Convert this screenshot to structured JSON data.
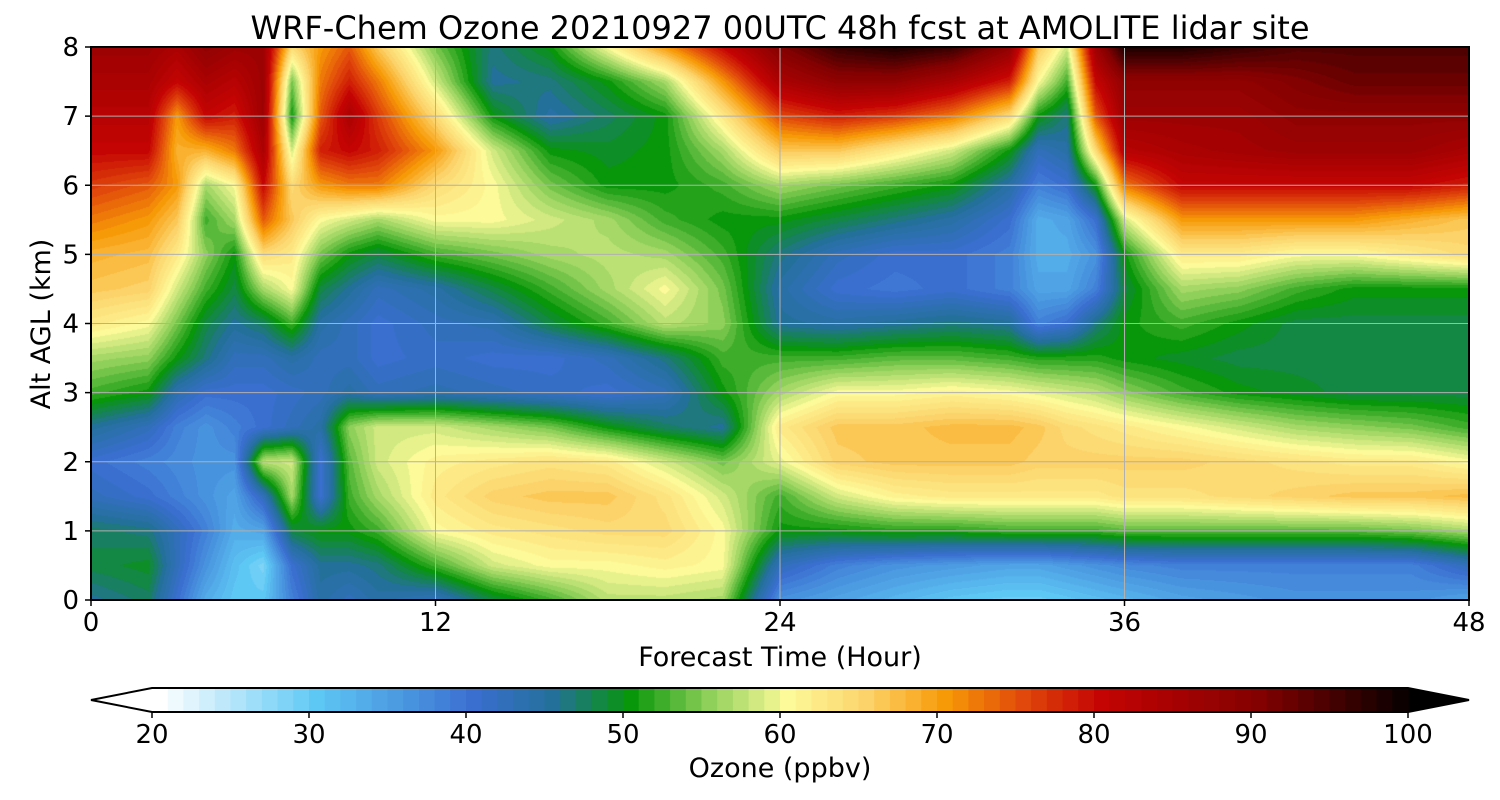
{
  "chart_data": {
    "type": "heatmap",
    "title": "WRF-Chem Ozone  20210927 00UTC 48h fcst at AMOLITE lidar site",
    "xlabel": "Forecast Time (Hour)",
    "ylabel": "Alt AGL (km)",
    "xlim": [
      0,
      48
    ],
    "ylim": [
      0,
      8
    ],
    "x_ticks": [
      0,
      12,
      24,
      36,
      48
    ],
    "y_ticks": [
      0,
      1,
      2,
      3,
      4,
      5,
      6,
      7,
      8
    ],
    "grid": true,
    "x_hours": [
      0,
      2,
      3,
      4,
      5,
      6,
      7,
      8,
      9,
      10,
      12,
      14,
      16,
      18,
      20,
      22,
      24,
      26,
      28,
      30,
      32,
      33,
      34,
      35,
      36,
      38,
      40,
      42,
      44,
      46,
      48
    ],
    "y_km": [
      0,
      0.5,
      1,
      1.5,
      2,
      2.5,
      3,
      3.5,
      4,
      4.5,
      5,
      5.5,
      6,
      6.5,
      7,
      7.5,
      8
    ],
    "ozone_ppbv": [
      [
        45,
        47,
        40,
        33,
        30,
        30,
        38,
        44,
        42,
        44,
        42,
        48,
        52,
        57,
        57,
        56,
        36,
        34,
        32,
        30,
        29,
        29,
        30,
        31,
        32,
        34,
        35,
        36,
        36,
        36,
        34
      ],
      [
        48,
        49,
        42,
        36,
        31,
        28,
        40,
        45,
        45,
        46,
        52,
        58,
        60,
        60,
        61,
        60,
        42,
        38,
        36,
        35,
        34,
        34,
        35,
        36,
        37,
        38,
        38,
        38,
        38,
        38,
        42
      ],
      [
        47,
        46,
        42,
        38,
        33,
        34,
        48,
        50,
        50,
        52,
        60,
        62,
        63,
        64,
        64,
        60,
        50,
        50,
        51,
        51,
        52,
        52,
        52,
        52,
        53,
        53,
        53,
        53,
        53,
        54,
        56
      ],
      [
        42,
        40,
        38,
        36,
        34,
        42,
        56,
        40,
        52,
        56,
        62,
        65,
        66,
        66,
        63,
        58,
        52,
        58,
        61,
        62,
        62,
        62,
        62,
        62,
        63,
        63,
        64,
        65,
        66,
        66,
        67
      ],
      [
        40,
        38,
        37,
        36,
        36,
        57,
        58,
        40,
        53,
        58,
        61,
        62,
        63,
        62,
        58,
        54,
        59,
        65,
        66,
        66,
        66,
        65,
        65,
        65,
        65,
        65,
        64,
        63,
        62,
        62,
        60
      ],
      [
        45,
        42,
        38,
        36,
        38,
        40,
        42,
        44,
        55,
        58,
        58,
        56,
        54,
        50,
        47,
        45,
        62,
        66,
        66,
        67,
        67,
        66,
        64,
        63,
        62,
        60,
        58,
        56,
        55,
        54,
        52
      ],
      [
        52,
        50,
        43,
        40,
        40,
        40,
        41,
        42,
        44,
        42,
        43,
        42,
        41,
        40,
        42,
        50,
        56,
        60,
        60,
        61,
        60,
        59,
        58,
        57,
        55,
        52,
        50,
        49,
        48,
        48,
        48
      ],
      [
        56,
        55,
        50,
        46,
        42,
        42,
        44,
        42,
        42,
        40,
        41,
        40,
        40,
        42,
        46,
        52,
        52,
        52,
        53,
        53,
        52,
        51,
        51,
        51,
        50,
        49,
        48,
        48,
        48,
        48,
        48
      ],
      [
        62,
        60,
        54,
        48,
        45,
        47,
        52,
        44,
        42,
        40,
        42,
        43,
        48,
        52,
        57,
        55,
        45,
        44,
        45,
        46,
        45,
        38,
        40,
        46,
        50,
        52,
        50,
        48,
        48,
        48,
        48
      ],
      [
        66,
        65,
        58,
        52,
        48,
        56,
        60,
        48,
        45,
        42,
        44,
        48,
        52,
        56,
        60,
        54,
        44,
        40,
        39,
        40,
        38,
        34,
        34,
        38,
        48,
        56,
        55,
        52,
        50,
        50,
        50
      ],
      [
        68,
        67,
        62,
        55,
        50,
        64,
        62,
        54,
        50,
        48,
        52,
        54,
        56,
        57,
        56,
        52,
        46,
        42,
        40,
        40,
        38,
        33,
        33,
        36,
        50,
        62,
        62,
        60,
        60,
        62,
        64
      ],
      [
        72,
        70,
        66,
        52,
        56,
        74,
        66,
        60,
        58,
        56,
        60,
        60,
        58,
        56,
        52,
        50,
        50,
        48,
        46,
        44,
        40,
        33,
        34,
        40,
        58,
        70,
        70,
        70,
        70,
        68,
        66
      ],
      [
        76,
        74,
        70,
        56,
        60,
        80,
        64,
        70,
        72,
        72,
        64,
        60,
        54,
        50,
        50,
        52,
        56,
        54,
        52,
        50,
        44,
        38,
        40,
        50,
        72,
        80,
        80,
        80,
        80,
        80,
        78
      ],
      [
        80,
        80,
        68,
        68,
        72,
        84,
        58,
        78,
        80,
        78,
        70,
        58,
        50,
        49,
        50,
        56,
        66,
        66,
        62,
        58,
        50,
        42,
        44,
        64,
        82,
        84,
        85,
        86,
        86,
        86,
        84
      ],
      [
        82,
        82,
        70,
        80,
        78,
        86,
        50,
        74,
        84,
        76,
        64,
        50,
        44,
        47,
        50,
        62,
        75,
        78,
        76,
        72,
        64,
        50,
        46,
        74,
        86,
        86,
        86,
        88,
        88,
        88,
        88
      ],
      [
        84,
        84,
        80,
        84,
        82,
        86,
        54,
        72,
        78,
        72,
        58,
        45,
        46,
        50,
        56,
        70,
        84,
        88,
        88,
        84,
        78,
        60,
        52,
        80,
        88,
        88,
        88,
        90,
        92,
        92,
        92
      ],
      [
        86,
        86,
        84,
        88,
        86,
        86,
        64,
        70,
        74,
        66,
        54,
        46,
        50,
        60,
        70,
        80,
        90,
        96,
        98,
        96,
        88,
        66,
        58,
        86,
        98,
        98,
        96,
        94,
        94,
        94,
        94
      ]
    ],
    "colorbar": {
      "label": "Ozone  (ppbv)",
      "min": 20,
      "max": 100,
      "tick_values": [
        20,
        30,
        40,
        50,
        60,
        70,
        80,
        90,
        100
      ],
      "extend": "both",
      "colormap": [
        {
          "v": 20,
          "color": "#ffffff"
        },
        {
          "v": 30,
          "color": "#5ec8f4"
        },
        {
          "v": 40,
          "color": "#3a6fd0"
        },
        {
          "v": 45,
          "color": "#23709a"
        },
        {
          "v": 50,
          "color": "#08960a"
        },
        {
          "v": 55,
          "color": "#8fd05a"
        },
        {
          "v": 60,
          "color": "#fdfa9a"
        },
        {
          "v": 65,
          "color": "#fcd36a"
        },
        {
          "v": 70,
          "color": "#f79a07"
        },
        {
          "v": 75,
          "color": "#e1480b"
        },
        {
          "v": 80,
          "color": "#c40303"
        },
        {
          "v": 90,
          "color": "#830101"
        },
        {
          "v": 100,
          "color": "#000000"
        }
      ]
    }
  }
}
